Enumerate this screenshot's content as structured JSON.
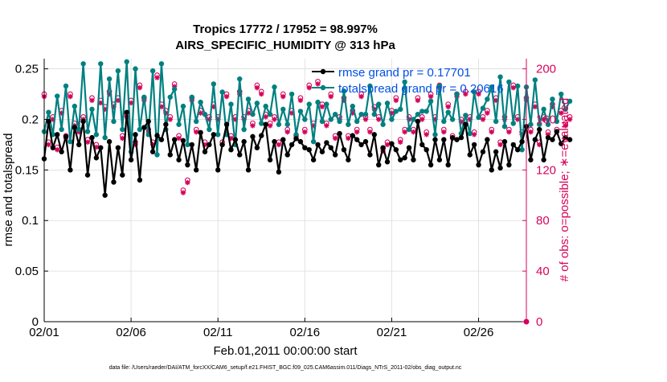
{
  "chart_data": {
    "type": "line",
    "title_line1": "Tropics 17772 / 17952 = 98.997%",
    "title_line2": "AIRS_SPECIFIC_HUMIDITY @ 313 hPa",
    "xlabel": "Feb.01,2011 00:00:00 start",
    "ylabel_left": "rmse and totalspread",
    "ylabel_right": "# of obs: o=possible; ∗=evaluated",
    "footer": "data file: /Users/raeder/DAI/ATM_forcXX/CAM6_setup/f.e21.FHIST_BGC.f09_025.CAM6assim.011/Diags_NTrS_2011-02/obs_diag_output.nc",
    "x_tick_labels": [
      "02/01",
      "02/06",
      "02/11",
      "02/16",
      "02/21",
      "02/26"
    ],
    "x_tick_days": [
      0,
      5,
      10,
      15,
      20,
      25
    ],
    "xlim_days": [
      0,
      27.75
    ],
    "ylim_left": [
      0,
      0.26
    ],
    "left_ticks": [
      0,
      0.05,
      0.1,
      0.15,
      0.2,
      0.25
    ],
    "left_tick_labels": [
      "0",
      "0.05",
      "0.1",
      "0.15",
      "0.2",
      "0.25"
    ],
    "ylim_right": [
      0,
      208
    ],
    "right_ticks": [
      0,
      40,
      80,
      120,
      160,
      200
    ],
    "right_tick_labels": [
      "0",
      "40",
      "80",
      "120",
      "160",
      "200"
    ],
    "time_step_days": 0.25,
    "legend": {
      "position": "top-right",
      "rmse_label": "rmse grand pr = 0.17701",
      "spread_label": "totalspread grand pr = 0.20616"
    },
    "colors": {
      "rmse": "#000000",
      "spread": "#008080",
      "obs": "#d6045b",
      "legend_text": "#0050e6",
      "grid": "#dcdcdc",
      "axis": "#000000"
    },
    "series": [
      {
        "name": "rmse",
        "axis": "left",
        "values": [
          0.161,
          0.198,
          0.172,
          0.185,
          0.168,
          0.183,
          0.15,
          0.192,
          0.175,
          0.198,
          0.145,
          0.182,
          0.162,
          0.172,
          0.125,
          0.178,
          0.138,
          0.172,
          0.145,
          0.207,
          0.16,
          0.185,
          0.14,
          0.192,
          0.198,
          0.168,
          0.184,
          0.18,
          0.195,
          0.165,
          0.18,
          0.16,
          0.179,
          0.155,
          0.175,
          0.15,
          0.187,
          0.168,
          0.175,
          0.185,
          0.15,
          0.175,
          0.195,
          0.17,
          0.18,
          0.165,
          0.178,
          0.15,
          0.183,
          0.172,
          0.184,
          0.195,
          0.16,
          0.178,
          0.148,
          0.18,
          0.165,
          0.175,
          0.181,
          0.178,
          0.172,
          0.17,
          0.16,
          0.175,
          0.168,
          0.177,
          0.172,
          0.165,
          0.186,
          0.17,
          0.16,
          0.184,
          0.18,
          0.175,
          0.178,
          0.165,
          0.185,
          0.155,
          0.172,
          0.158,
          0.176,
          0.17,
          0.16,
          0.162,
          0.172,
          0.16,
          0.198,
          0.175,
          0.17,
          0.155,
          0.18,
          0.16,
          0.18,
          0.155,
          0.182,
          0.18,
          0.182,
          0.195,
          0.165,
          0.175,
          0.155,
          0.168,
          0.18,
          0.15,
          0.168,
          0.152,
          0.178,
          0.155,
          0.175,
          0.17,
          0.178,
          0.193,
          0.16,
          0.18,
          0.19,
          0.16,
          0.182,
          0.18,
          0.188,
          0.176,
          0.182,
          0.18
        ]
      },
      {
        "name": "totalspread",
        "axis": "left",
        "values": [
          0.188,
          0.207,
          0.185,
          0.223,
          0.19,
          0.233,
          0.178,
          0.213,
          0.19,
          0.255,
          0.188,
          0.21,
          0.185,
          0.255,
          0.182,
          0.24,
          0.198,
          0.248,
          0.19,
          0.257,
          0.168,
          0.25,
          0.19,
          0.222,
          0.185,
          0.248,
          0.165,
          0.255,
          0.19,
          0.222,
          0.23,
          0.195,
          0.213,
          0.175,
          0.222,
          0.198,
          0.217,
          0.205,
          0.19,
          0.235,
          0.185,
          0.227,
          0.185,
          0.215,
          0.175,
          0.24,
          0.19,
          0.22,
          0.205,
          0.216,
          0.196,
          0.213,
          0.205,
          0.232,
          0.195,
          0.21,
          0.195,
          0.225,
          0.185,
          0.208,
          0.2,
          0.215,
          0.178,
          0.217,
          0.198,
          0.215,
          0.2,
          0.205,
          0.198,
          0.228,
          0.195,
          0.213,
          0.198,
          0.205,
          0.205,
          0.233,
          0.205,
          0.215,
          0.195,
          0.216,
          0.2,
          0.208,
          0.21,
          0.237,
          0.19,
          0.2,
          0.205,
          0.208,
          0.208,
          0.218,
          0.185,
          0.233,
          0.198,
          0.207,
          0.2,
          0.225,
          0.186,
          0.204,
          0.186,
          0.227,
          0.202,
          0.211,
          0.22,
          0.232,
          0.198,
          0.242,
          0.193,
          0.237,
          0.196,
          0.233,
          0.17,
          0.232,
          0.195,
          0.239,
          0.195,
          0.21,
          0.195,
          0.22,
          0.198,
          0.225,
          0.21,
          0.218
        ]
      },
      {
        "name": "obs_evaluated",
        "axis": "right",
        "values": [
          178,
          140,
          160,
          136,
          165,
          145,
          178,
          155,
          150,
          160,
          142,
          175,
          138,
          173,
          168,
          180,
          170,
          175,
          145,
          162,
          173,
          140,
          185,
          175,
          150,
          140,
          193,
          170,
          165,
          160,
          186,
          145,
          102,
          110,
          175,
          150,
          165,
          140,
          160,
          170,
          160,
          140,
          178,
          145,
          160,
          180,
          160,
          165,
          155,
          185,
          180,
          162,
          155,
          160,
          140,
          178,
          150,
          165,
          145,
          175,
          150,
          185,
          155,
          188,
          170,
          155,
          178,
          145,
          160,
          175,
          145,
          165,
          150,
          178,
          160,
          150,
          168,
          160,
          135,
          140,
          165,
          175,
          142,
          150,
          160,
          150,
          175,
          160,
          148,
          178,
          160,
          185,
          150,
          170,
          145,
          178,
          158,
          180,
          160,
          148,
          180,
          160,
          165,
          150,
          175,
          140,
          160,
          150,
          185,
          160,
          148,
          175,
          150,
          170,
          140,
          160,
          148,
          170,
          150,
          165,
          155,
          160
        ]
      },
      {
        "name": "obs_possible",
        "axis": "right",
        "values": [
          180,
          142,
          162,
          138,
          167,
          147,
          180,
          157,
          152,
          162,
          144,
          177,
          140,
          175,
          170,
          182,
          172,
          177,
          147,
          164,
          175,
          142,
          187,
          177,
          152,
          142,
          195,
          172,
          167,
          162,
          188,
          147,
          104,
          112,
          177,
          152,
          167,
          142,
          162,
          172,
          162,
          142,
          180,
          147,
          162,
          182,
          162,
          167,
          157,
          187,
          182,
          164,
          157,
          162,
          142,
          180,
          152,
          167,
          147,
          177,
          152,
          187,
          157,
          190,
          172,
          157,
          180,
          147,
          162,
          177,
          147,
          167,
          152,
          180,
          162,
          152,
          170,
          162,
          137,
          142,
          167,
          177,
          144,
          152,
          162,
          152,
          177,
          162,
          150,
          180,
          162,
          187,
          152,
          172,
          147,
          180,
          160,
          182,
          162,
          150,
          182,
          162,
          167,
          152,
          177,
          142,
          162,
          152,
          187,
          162,
          150,
          177,
          152,
          172,
          142,
          162,
          150,
          172,
          152,
          167,
          157,
          162
        ]
      }
    ],
    "trailing_obs_value": 0
  }
}
